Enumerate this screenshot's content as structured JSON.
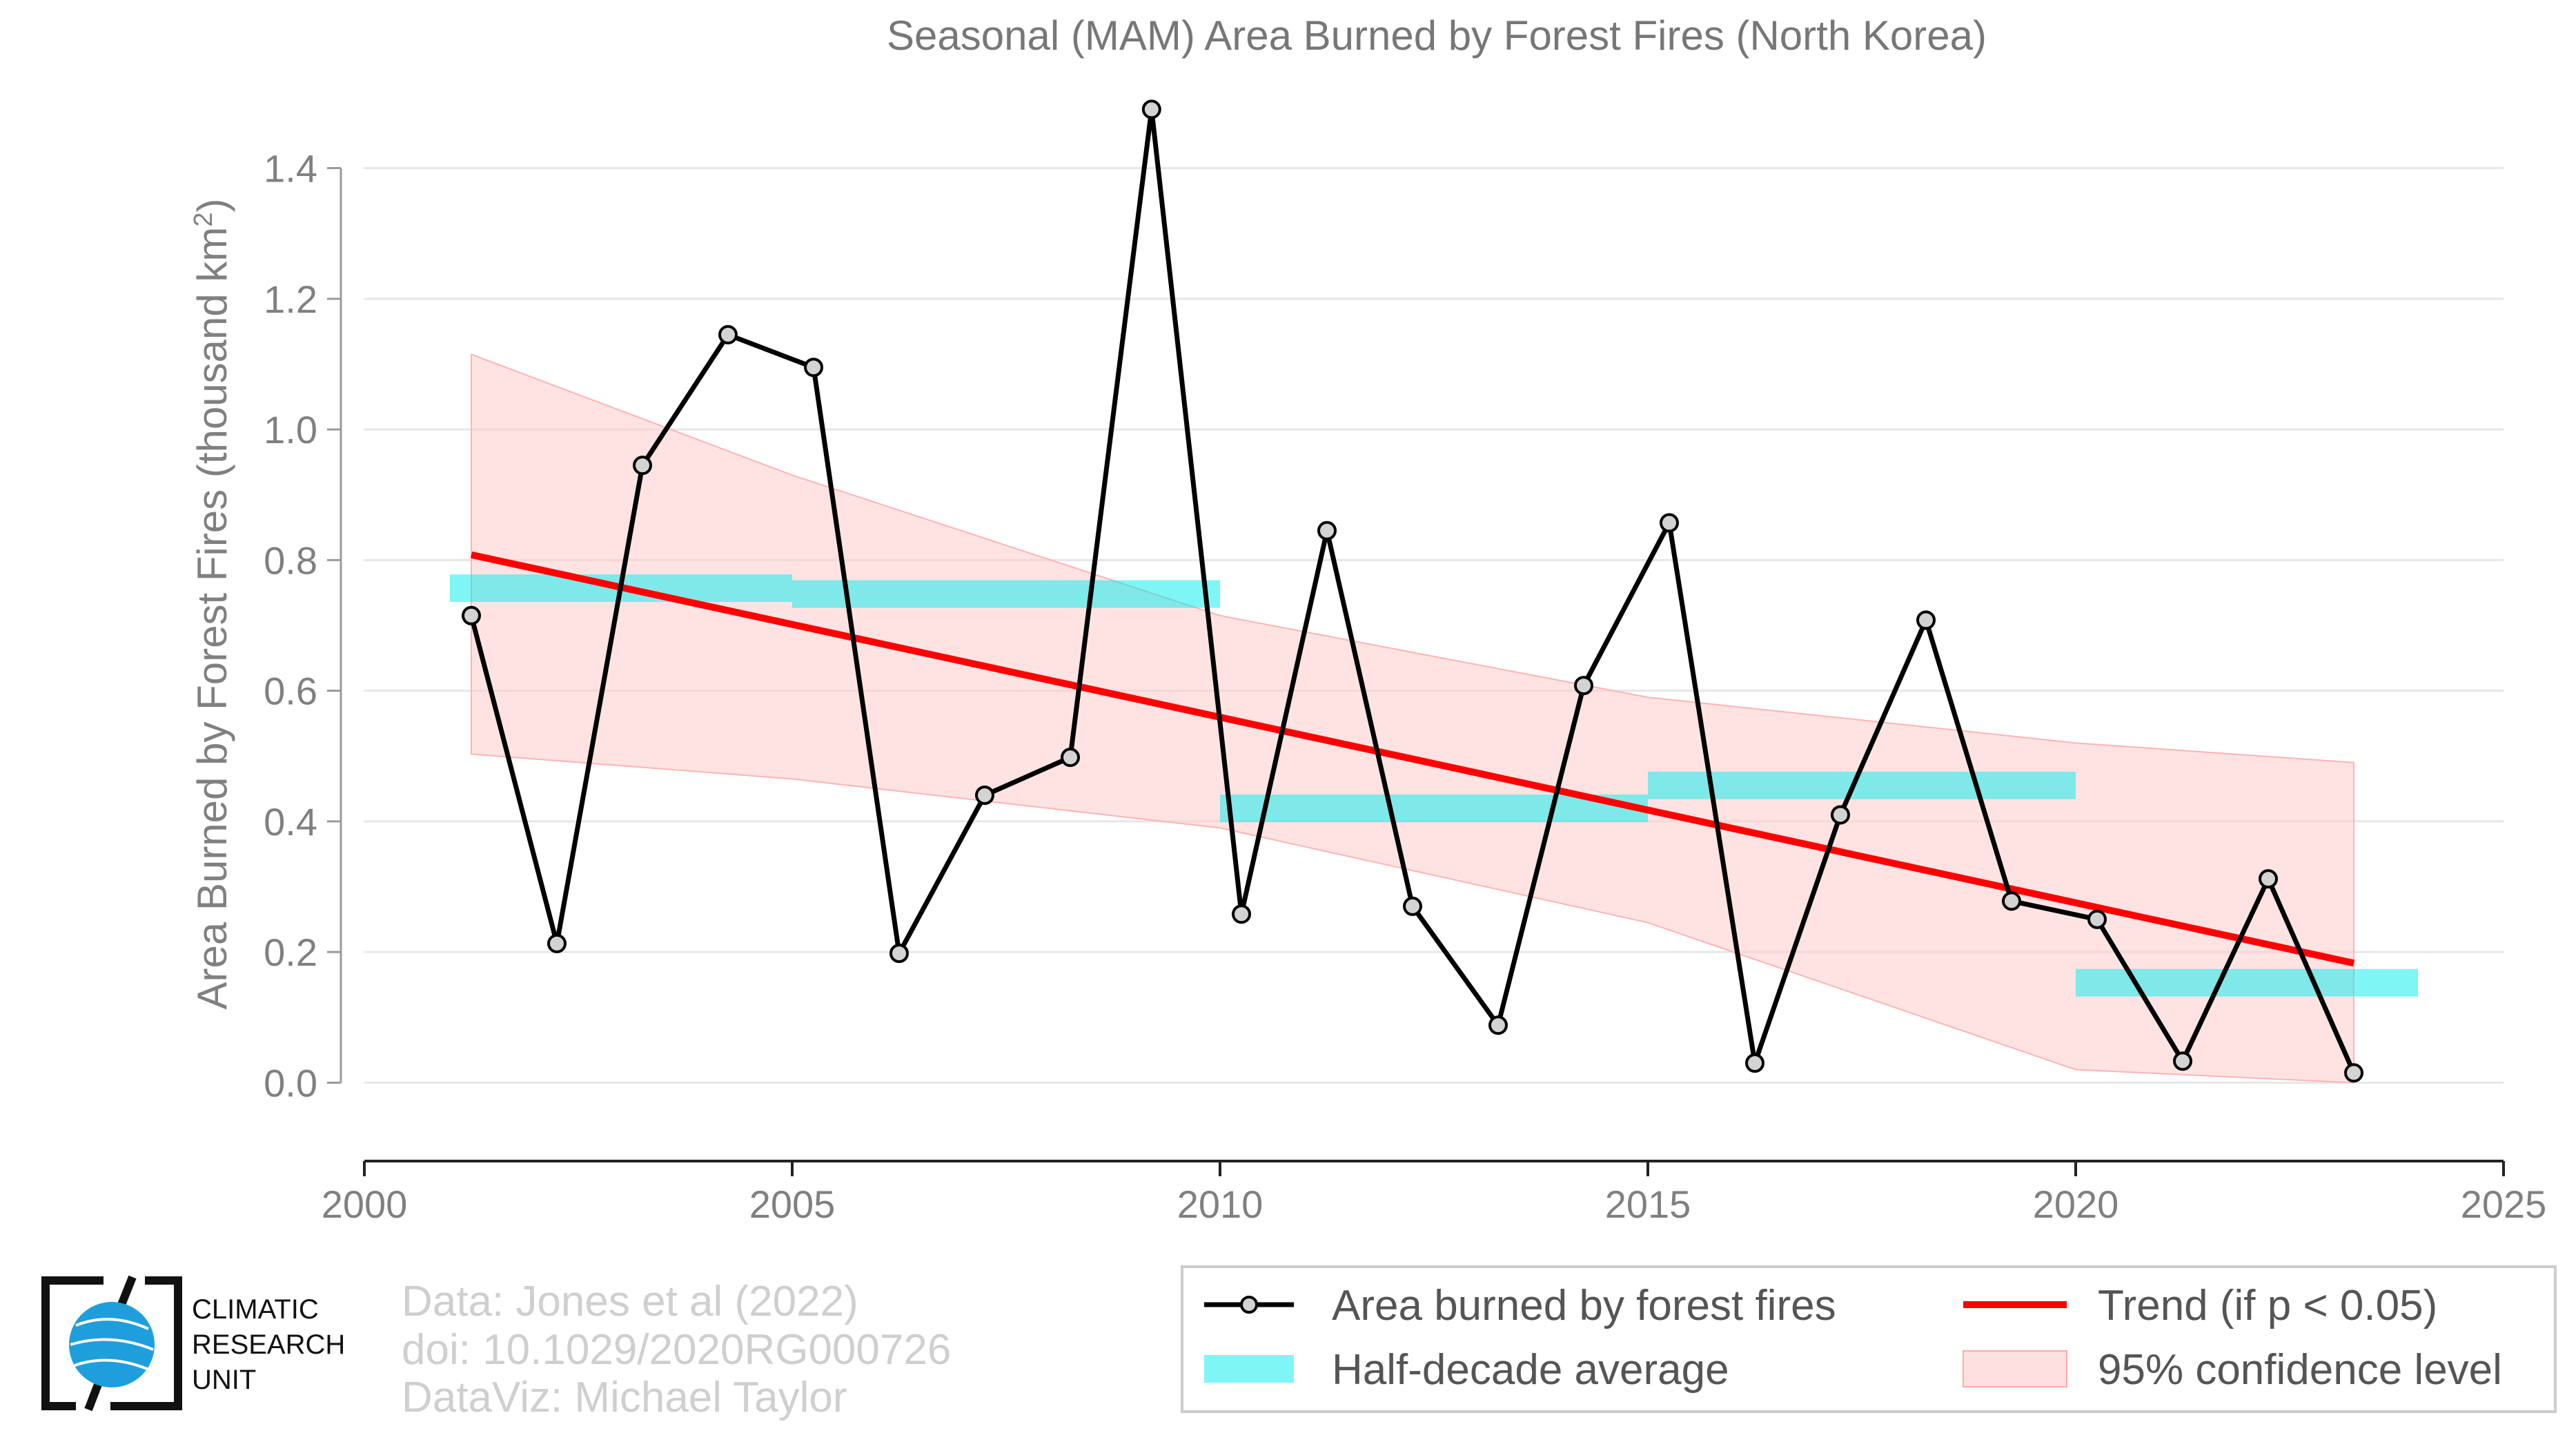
{
  "chart_data": {
    "type": "line",
    "title": "Seasonal (MAM) Area Burned by Forest Fires (North Korea)",
    "ylabel": "Area Burned by Forest Fires (thousand km²)",
    "ylabel_main": "Area Burned by Forest Fires (thousand km",
    "ylabel_sup": "2",
    "ylabel_close": ")",
    "xlabel": "",
    "xlim": [
      2000,
      2025
    ],
    "ylim": [
      -0.12,
      1.52
    ],
    "x_ticks": [
      "2000",
      "2005",
      "2010",
      "2015",
      "2020",
      "2025"
    ],
    "y_ticks": [
      "0.0",
      "0.2",
      "0.4",
      "0.6",
      "0.8",
      "1.0",
      "1.2",
      "1.4"
    ],
    "grid": "horizontal",
    "legend_position": "bottom-right",
    "series": [
      {
        "name": "Area burned by forest fires",
        "kind": "line-markers",
        "color": "#000000",
        "x": [
          2001.25,
          2002.25,
          2003.25,
          2004.25,
          2005.25,
          2006.25,
          2007.25,
          2008.25,
          2009.2,
          2010.25,
          2011.25,
          2012.25,
          2013.25,
          2014.25,
          2015.25,
          2016.25,
          2017.25,
          2018.25,
          2019.25,
          2020.25,
          2021.25,
          2022.25,
          2023.25
        ],
        "y": [
          0.715,
          0.213,
          0.945,
          1.145,
          1.095,
          0.198,
          0.44,
          0.498,
          1.49,
          0.258,
          0.845,
          0.27,
          0.088,
          0.608,
          0.857,
          0.03,
          0.41,
          0.708,
          0.278,
          0.25,
          0.033,
          0.312,
          0.015
        ]
      },
      {
        "name": "Half-decade average",
        "kind": "bars",
        "color": "#00eeee",
        "x_start": [
          2001.0,
          2005.0,
          2010.0,
          2015.0,
          2020.0
        ],
        "x_end": [
          2005.0,
          2010.0,
          2015.0,
          2020.0,
          2024.0
        ],
        "y": [
          0.757,
          0.748,
          0.42,
          0.455,
          0.153
        ]
      },
      {
        "name": "Trend (if p < 0.05)",
        "kind": "line",
        "color": "#ff0000",
        "x": [
          2001.25,
          2023.25
        ],
        "y": [
          0.808,
          0.183
        ]
      },
      {
        "name": "95% confidence level",
        "kind": "band",
        "color": "#ffcccc",
        "x": [
          2001.25,
          2005.0,
          2010.0,
          2015.0,
          2020.0,
          2023.25
        ],
        "upper": [
          1.115,
          0.93,
          0.715,
          0.59,
          0.52,
          0.49
        ],
        "lower": [
          0.503,
          0.465,
          0.39,
          0.245,
          0.02,
          0.0
        ]
      }
    ],
    "legend": [
      {
        "label": "Area burned by forest fires",
        "kind": "line-marker",
        "color": "#000000"
      },
      {
        "label": "Trend (if p < 0.05)",
        "kind": "line",
        "color": "#ff0000"
      },
      {
        "label": "Half-decade average",
        "kind": "bar",
        "color": "#00eeee"
      },
      {
        "label": "95% confidence level",
        "kind": "band",
        "color": "#ffcccc"
      }
    ]
  },
  "credits": {
    "line1": "Data: Jones et al (2022)",
    "line2": "doi: 10.1029/2020RG000726",
    "line3": "DataViz: Michael Taylor"
  },
  "logo": {
    "line1": "CLIMATIC",
    "line2": "RESEARCH",
    "line3": "UNIT"
  }
}
